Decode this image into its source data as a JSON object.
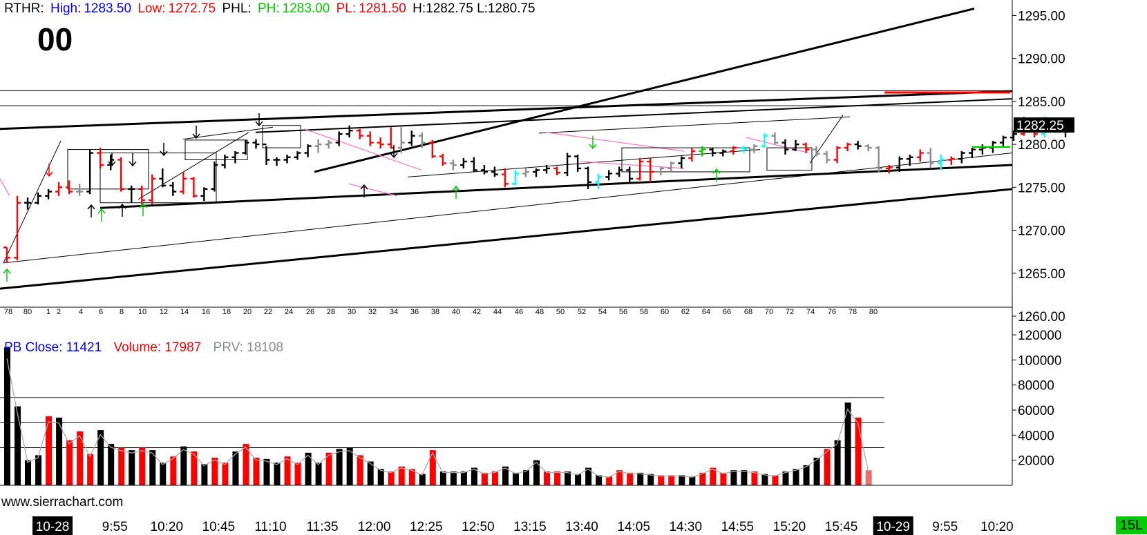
{
  "header": {
    "rthr_label": "RTHR:",
    "high_label": "High:",
    "high_value": "1283.50",
    "low_label": "Low:",
    "low_value": "1272.75",
    "phl_label": "PHL:",
    "ph_label": "PH:",
    "ph_value": "1283.00",
    "pl_label": "PL:",
    "pl_value": "1281.50",
    "hl_text": "H:1282.75 L:1280.75",
    "counter": "00"
  },
  "volume_header": {
    "pb_label": "PB Close:",
    "pb_value": "11421",
    "volume_label": "Volume:",
    "volume_value": "17987",
    "prv_label": "PRV:",
    "prv_value": "18108"
  },
  "watermark": "www.sierrachart.com",
  "timeframe_badge": "15L",
  "colors": {
    "up": "#000000",
    "down": "#ff0000",
    "neutral": "#8c8c8c",
    "cyan": "#00ffff",
    "blue": "#0000ff",
    "green": "#00cc00",
    "magenta": "#ff00ff",
    "pink": "#ff77cc"
  },
  "chart_data": [
    {
      "type": "ohlc",
      "name": "price",
      "ylim": [
        1260,
        1296
      ],
      "yticks": [
        "1295.00",
        "1290.00",
        "1285.00",
        "1280.00",
        "1275.00",
        "1270.00",
        "1265.00",
        "1260.00"
      ],
      "last_price_label": "1282.25",
      "bar_number_labels": [
        "78",
        "80",
        "1",
        "2",
        "4",
        "6",
        "8",
        "10",
        "12",
        "14",
        "16",
        "18",
        "20",
        "22",
        "24",
        "26",
        "28",
        "30",
        "32",
        "34",
        "36",
        "38",
        "40",
        "42",
        "44",
        "46",
        "48",
        "50",
        "52",
        "54",
        "56",
        "58",
        "60",
        "62",
        "64",
        "66",
        "68",
        "70",
        "72",
        "74",
        "76",
        "78",
        "80"
      ],
      "horizontal_lines": [
        1286.25,
        1284.5
      ],
      "bar_colors": [
        "d",
        "d",
        "u",
        "u",
        "u",
        "d",
        "d",
        "n",
        "u",
        "d",
        "u",
        "d",
        "u",
        "d",
        "d",
        "u",
        "u",
        "d",
        "d",
        "u",
        "u",
        "u",
        "u",
        "u",
        "u",
        "u",
        "u",
        "u",
        "u",
        "u",
        "n",
        "n",
        "u",
        "u",
        "d",
        "d",
        "d",
        "d",
        "n",
        "u",
        "n",
        "d",
        "d",
        "n",
        "u",
        "u",
        "u",
        "u",
        "d",
        "c",
        "n",
        "u",
        "u",
        "d",
        "u",
        "u",
        "u",
        "c",
        "u",
        "u",
        "u",
        "d",
        "d",
        "n",
        "n",
        "u",
        "d",
        "g",
        "u",
        "u",
        "d",
        "c",
        "n",
        "c",
        "n",
        "u",
        "u",
        "d",
        "n",
        "n",
        "d",
        "d",
        "u",
        "n",
        "n",
        "d",
        "u",
        "u",
        "d",
        "n",
        "c",
        "d",
        "u",
        "u",
        "u",
        "u",
        "u",
        "u",
        "d",
        "d",
        "c",
        "u"
      ],
      "ohlc": [
        [
          1268.0,
          1268.0,
          1266.2,
          1266.8
        ],
        [
          1266.8,
          1274.0,
          1266.5,
          1273.2
        ],
        [
          1273.2,
          1273.8,
          1272.4,
          1273.2
        ],
        [
          1273.2,
          1274.4,
          1273.0,
          1274.0
        ],
        [
          1274.0,
          1274.8,
          1273.6,
          1274.5
        ],
        [
          1274.5,
          1275.6,
          1274.0,
          1275.0
        ],
        [
          1275.0,
          1275.8,
          1274.2,
          1274.5
        ],
        [
          1274.5,
          1275.4,
          1274.0,
          1274.5
        ],
        [
          1274.5,
          1279.4,
          1274.2,
          1279.0
        ],
        [
          1279.0,
          1279.6,
          1277.2,
          1277.6
        ],
        [
          1277.6,
          1278.8,
          1277.0,
          1278.2
        ],
        [
          1278.2,
          1278.5,
          1274.5,
          1274.8
        ],
        [
          1274.8,
          1275.2,
          1273.2,
          1274.8
        ],
        [
          1274.8,
          1275.2,
          1273.0,
          1273.5
        ],
        [
          1273.5,
          1276.5,
          1273.0,
          1276.0
        ],
        [
          1276.0,
          1277.2,
          1275.0,
          1275.2
        ],
        [
          1275.2,
          1275.6,
          1274.0,
          1274.5
        ],
        [
          1274.5,
          1276.8,
          1274.2,
          1276.0
        ],
        [
          1276.0,
          1276.2,
          1273.8,
          1274.0
        ],
        [
          1274.0,
          1275.0,
          1273.4,
          1274.8
        ],
        [
          1274.8,
          1278.0,
          1274.5,
          1277.6
        ],
        [
          1277.6,
          1278.8,
          1277.2,
          1278.5
        ],
        [
          1278.5,
          1279.2,
          1277.8,
          1279.0
        ],
        [
          1279.0,
          1280.5,
          1278.8,
          1280.2
        ],
        [
          1280.2,
          1280.6,
          1279.5,
          1280.0
        ],
        [
          1280.0,
          1279.8,
          1277.6,
          1278.2
        ],
        [
          1278.2,
          1278.5,
          1277.5,
          1278.2
        ],
        [
          1278.2,
          1278.8,
          1277.8,
          1278.5
        ],
        [
          1278.5,
          1279.2,
          1278.2,
          1279.0
        ],
        [
          1279.0,
          1280.0,
          1278.5,
          1279.8
        ],
        [
          1279.8,
          1280.6,
          1279.0,
          1280.0
        ],
        [
          1280.0,
          1280.5,
          1279.5,
          1280.2
        ],
        [
          1280.2,
          1281.5,
          1279.8,
          1281.2
        ],
        [
          1281.2,
          1282.2,
          1280.8,
          1281.6
        ],
        [
          1281.6,
          1281.8,
          1280.6,
          1281.0
        ],
        [
          1281.0,
          1281.5,
          1279.8,
          1280.2
        ],
        [
          1280.2,
          1280.8,
          1279.5,
          1280.0
        ],
        [
          1280.0,
          1282.0,
          1279.5,
          1279.6
        ],
        [
          1279.6,
          1282.0,
          1279.0,
          1280.2
        ],
        [
          1280.2,
          1281.6,
          1279.8,
          1281.0
        ],
        [
          1281.0,
          1281.4,
          1279.6,
          1280.2
        ],
        [
          1280.2,
          1280.5,
          1278.4,
          1278.6
        ],
        [
          1278.6,
          1278.9,
          1277.5,
          1277.8
        ],
        [
          1277.8,
          1278.2,
          1277.0,
          1277.6
        ],
        [
          1277.6,
          1278.4,
          1277.2,
          1278.0
        ],
        [
          1278.0,
          1278.5,
          1276.8,
          1277.0
        ],
        [
          1277.0,
          1277.6,
          1276.5,
          1276.8
        ],
        [
          1276.8,
          1277.4,
          1276.2,
          1276.5
        ],
        [
          1276.5,
          1277.2,
          1275.0,
          1275.4
        ],
        [
          1275.4,
          1277.0,
          1275.2,
          1276.6
        ],
        [
          1276.6,
          1277.2,
          1276.2,
          1276.8
        ],
        [
          1276.8,
          1277.2,
          1276.2,
          1277.0
        ],
        [
          1277.0,
          1277.6,
          1276.6,
          1277.2
        ],
        [
          1277.2,
          1277.4,
          1276.4,
          1276.7
        ],
        [
          1276.7,
          1279.0,
          1276.3,
          1278.6
        ],
        [
          1278.6,
          1278.8,
          1276.8,
          1277.2
        ],
        [
          1277.2,
          1277.4,
          1274.8,
          1275.6
        ],
        [
          1275.6,
          1276.6,
          1274.8,
          1276.2
        ],
        [
          1276.2,
          1277.0,
          1275.8,
          1276.6
        ],
        [
          1276.6,
          1277.4,
          1276.2,
          1277.0
        ],
        [
          1277.0,
          1277.4,
          1275.5,
          1276.0
        ],
        [
          1276.0,
          1278.4,
          1275.8,
          1278.0
        ],
        [
          1278.0,
          1278.4,
          1275.6,
          1276.8
        ],
        [
          1276.8,
          1277.4,
          1276.4,
          1277.2
        ],
        [
          1277.2,
          1278.0,
          1276.8,
          1277.8
        ],
        [
          1277.8,
          1278.6,
          1277.2,
          1278.4
        ],
        [
          1278.4,
          1279.6,
          1278.0,
          1279.2
        ],
        [
          1279.2,
          1279.8,
          1278.6,
          1279.4
        ],
        [
          1279.4,
          1279.6,
          1278.6,
          1279.0
        ],
        [
          1279.0,
          1279.4,
          1278.6,
          1279.2
        ],
        [
          1279.2,
          1279.8,
          1278.8,
          1279.6
        ],
        [
          1279.6,
          1279.8,
          1279.0,
          1279.4
        ],
        [
          1279.4,
          1280.0,
          1279.0,
          1279.8
        ],
        [
          1279.8,
          1281.3,
          1279.6,
          1281.0
        ],
        [
          1281.0,
          1281.4,
          1280.0,
          1280.2
        ],
        [
          1280.2,
          1280.6,
          1278.8,
          1279.4
        ],
        [
          1279.4,
          1280.5,
          1279.2,
          1280.0
        ],
        [
          1280.0,
          1280.2,
          1279.0,
          1279.4
        ],
        [
          1279.4,
          1279.8,
          1278.6,
          1278.9
        ],
        [
          1278.9,
          1279.2,
          1277.8,
          1278.2
        ],
        [
          1278.2,
          1279.8,
          1277.8,
          1279.6
        ],
        [
          1279.6,
          1280.2,
          1279.2,
          1280.0
        ],
        [
          1280.0,
          1280.4,
          1279.4,
          1279.8
        ],
        [
          1279.8,
          1280.0,
          1279.2,
          1279.6
        ],
        [
          1279.6,
          1279.8,
          1276.8,
          1277.2
        ],
        [
          1277.2,
          1277.6,
          1276.6,
          1277.3
        ],
        [
          1277.3,
          1278.6,
          1276.8,
          1278.3
        ],
        [
          1278.3,
          1278.8,
          1277.5,
          1278.5
        ],
        [
          1278.5,
          1279.4,
          1278.0,
          1279.0
        ],
        [
          1279.0,
          1279.6,
          1277.2,
          1277.8
        ],
        [
          1277.8,
          1278.8,
          1277.0,
          1278.2
        ],
        [
          1278.2,
          1278.6,
          1277.6,
          1278.3
        ],
        [
          1278.3,
          1279.2,
          1277.8,
          1279.0
        ],
        [
          1279.0,
          1279.6,
          1278.4,
          1279.4
        ],
        [
          1279.4,
          1280.0,
          1278.8,
          1279.6
        ],
        [
          1279.6,
          1280.4,
          1279.0,
          1280.2
        ],
        [
          1280.2,
          1281.0,
          1279.8,
          1280.8
        ],
        [
          1280.8,
          1281.6,
          1280.4,
          1281.2
        ],
        [
          1281.2,
          1283.2,
          1281.0,
          1282.6
        ],
        [
          1282.6,
          1282.8,
          1280.8,
          1281.2
        ],
        [
          1281.2,
          1283.2,
          1280.8,
          1281.6
        ],
        [
          1281.6,
          1282.8,
          1281.4,
          1282.5
        ],
        [
          1282.5,
          1282.6,
          1280.8,
          1282.25
        ]
      ]
    },
    {
      "type": "bar",
      "name": "volume",
      "ylim": [
        0,
        125000
      ],
      "yticks": [
        "120000",
        "100000",
        "80000",
        "60000",
        "40000",
        "20000"
      ],
      "horizontal_lines": [
        70000,
        50000,
        30000
      ],
      "x_labels": [
        {
          "label": "10-28",
          "slot": 2,
          "highlight": true
        },
        {
          "label": "9:55",
          "slot": 8
        },
        {
          "label": "10:20",
          "slot": 13
        },
        {
          "label": "10:45",
          "slot": 18
        },
        {
          "label": "11:10",
          "slot": 23
        },
        {
          "label": "11:35",
          "slot": 28
        },
        {
          "label": "12:00",
          "slot": 33
        },
        {
          "label": "12:25",
          "slot": 38
        },
        {
          "label": "12:50",
          "slot": 43
        },
        {
          "label": "13:15",
          "slot": 48
        },
        {
          "label": "13:40",
          "slot": 53
        },
        {
          "label": "14:05",
          "slot": 58
        },
        {
          "label": "14:30",
          "slot": 63
        },
        {
          "label": "14:55",
          "slot": 68
        },
        {
          "label": "15:20",
          "slot": 73
        },
        {
          "label": "15:45",
          "slot": 78
        },
        {
          "label": "10-29",
          "slot": 83,
          "highlight": true
        },
        {
          "label": "9:55",
          "slot": 88
        },
        {
          "label": "10:20",
          "slot": 93
        }
      ],
      "colors": [
        "u",
        "u",
        "u",
        "u",
        "d",
        "u",
        "d",
        "d",
        "d",
        "u",
        "u",
        "d",
        "u",
        "d",
        "u",
        "u",
        "d",
        "u",
        "d",
        "u",
        "d",
        "d",
        "u",
        "d",
        "d",
        "u",
        "u",
        "d",
        "d",
        "u",
        "u",
        "d",
        "u",
        "u",
        "d",
        "u",
        "u",
        "d",
        "d",
        "d",
        "u",
        "d",
        "u",
        "u",
        "u",
        "u",
        "d",
        "d",
        "u",
        "u",
        "u",
        "u",
        "d",
        "d",
        "u",
        "u",
        "u",
        "u",
        "d",
        "d",
        "d",
        "u",
        "u",
        "d",
        "d",
        "u",
        "u",
        "d",
        "d",
        "d",
        "u",
        "u",
        "d",
        "u",
        "d",
        "u",
        "u",
        "u",
        "u",
        "d",
        "u",
        "u",
        "d",
        "d"
      ],
      "values": [
        110000,
        63000,
        20000,
        24000,
        55000,
        54000,
        36000,
        43000,
        25000,
        44000,
        33000,
        30000,
        28000,
        30000,
        28000,
        18000,
        23000,
        31000,
        27000,
        17000,
        22000,
        18000,
        27000,
        33000,
        22000,
        21000,
        18000,
        23000,
        18000,
        26000,
        18000,
        26000,
        29000,
        30000,
        24000,
        19000,
        13000,
        11000,
        15000,
        13000,
        9000,
        28000,
        11000,
        11000,
        11000,
        14000,
        10000,
        11000,
        15000,
        10000,
        12000,
        20000,
        11000,
        11000,
        11000,
        9000,
        14000,
        8000,
        7000,
        12000,
        10000,
        10000,
        9000,
        8000,
        8000,
        8000,
        7000,
        10000,
        14000,
        10000,
        12000,
        12000,
        11000,
        9000,
        8000,
        11000,
        13000,
        16000,
        22000,
        29000,
        36000,
        66000,
        54000,
        12000
      ]
    }
  ]
}
